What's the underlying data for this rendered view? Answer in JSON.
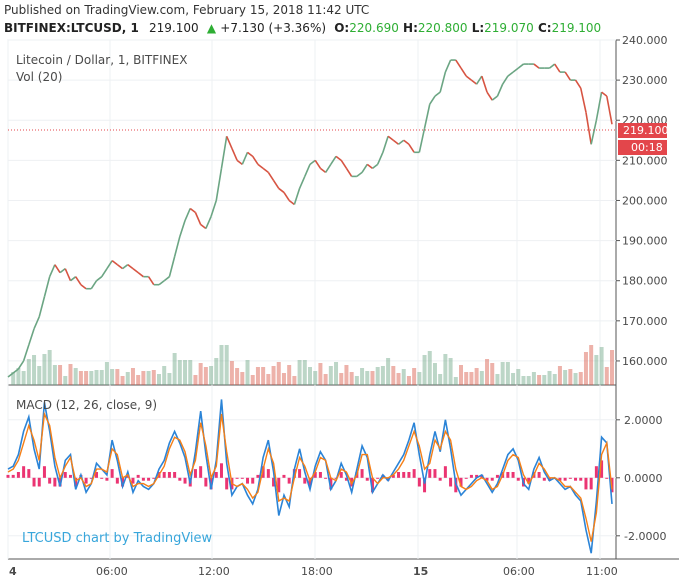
{
  "published": "Published on TradingView.com, February 15, 2018 11:42 UTC",
  "quote": {
    "symbol": "BITFINEX:LTCUSD, 1",
    "last": "219.100",
    "change": "+7.130 (+3.36%)",
    "o_label": "O:",
    "o": "220.690",
    "h_label": "H:",
    "h": "220.800",
    "l_label": "L:",
    "l": "219.070",
    "c_label": "C:",
    "c": "219.100"
  },
  "price_pane": {
    "title": "Litecoin / Dollar, 1, BITFINEX",
    "volume_label": "Vol (20)",
    "price_tag": "219.100",
    "countdown_tag": "00:18"
  },
  "macd_pane": {
    "label": "MACD (12, 26, close, 9)"
  },
  "watermark": "LTCUSD chart by TradingView",
  "colors": {
    "up": "#6ba583",
    "down": "#d75442",
    "macd_line": "#2b84d7",
    "signal_line": "#f57f17",
    "histogram": "#e91e63",
    "last_price": "#e3464b",
    "watermark": "#38a6db"
  },
  "chart_data": [
    {
      "type": "line",
      "title": "Litecoin / Dollar, 1, BITFINEX",
      "x_ticks": [
        "4",
        "06:00",
        "12:00",
        "18:00",
        "15",
        "06:00",
        "11:00"
      ],
      "y_ticks": [
        "240.000",
        "230.000",
        "220.000",
        "210.000",
        "200.000",
        "190.000",
        "180.000",
        "170.000",
        "160.000"
      ],
      "ylim": [
        154,
        240
      ],
      "last_price": 219.1,
      "series": [
        {
          "values": [
            156,
            157,
            158,
            160,
            164,
            168,
            171,
            176,
            181,
            184,
            182,
            183,
            180,
            181,
            179,
            178,
            178,
            180,
            181,
            183,
            185,
            184,
            183,
            184,
            183,
            182,
            181,
            181,
            179,
            179,
            180,
            181,
            186,
            191,
            195,
            198,
            197,
            194,
            193,
            196,
            200,
            208,
            216,
            213,
            210,
            209,
            212,
            211,
            209,
            208,
            207,
            205,
            203,
            202,
            200,
            199,
            203,
            206,
            209,
            210,
            208,
            207,
            209,
            211,
            210,
            208,
            206,
            206,
            207,
            209,
            208,
            209,
            212,
            216,
            215,
            214,
            215,
            214,
            212,
            212,
            218,
            224,
            226,
            227,
            232,
            235,
            235,
            233,
            231,
            230,
            229,
            231,
            227,
            225,
            226,
            229,
            231,
            232,
            233,
            234,
            234,
            234,
            233,
            233,
            233,
            234,
            232,
            232,
            230,
            230,
            228,
            222,
            214,
            220,
            227,
            226,
            219
          ]
        }
      ]
    },
    {
      "type": "line",
      "title": "MACD (12, 26, close, 9)",
      "y_ticks": [
        "2.0000",
        "0.0000",
        "-2.0000"
      ],
      "ylim": [
        -2.8,
        3.2
      ],
      "series": [
        {
          "name": "MACD",
          "values": [
            0.3,
            0.4,
            0.8,
            1.6,
            2.1,
            1.0,
            0.3,
            2.6,
            1.6,
            0.4,
            -0.3,
            0.6,
            0.8,
            -0.4,
            0.1,
            -0.5,
            -0.2,
            0.5,
            0.3,
            0.1,
            1.3,
            0.6,
            -0.3,
            0.2,
            -0.5,
            -0.1,
            -0.3,
            -0.4,
            -0.2,
            0.3,
            0.6,
            1.2,
            1.6,
            1.2,
            0.7,
            -0.2,
            0.9,
            2.3,
            0.8,
            -0.4,
            0.6,
            2.7,
            0.5,
            -0.6,
            -0.3,
            -0.2,
            -0.6,
            -0.9,
            -0.4,
            0.7,
            1.3,
            0.2,
            -1.3,
            -0.6,
            -1.0,
            0.3,
            1.0,
            0.2,
            -0.4,
            0.4,
            0.9,
            0.6,
            -0.4,
            -0.1,
            0.5,
            0.1,
            -0.5,
            0.3,
            1.1,
            0.7,
            -0.5,
            -0.2,
            0.1,
            -0.1,
            0.2,
            0.5,
            0.8,
            1.3,
            1.9,
            0.8,
            -0.2,
            0.8,
            1.6,
            0.9,
            2.0,
            1.0,
            -0.2,
            -0.6,
            -0.4,
            -0.2,
            0.0,
            0.1,
            -0.2,
            -0.5,
            -0.2,
            0.3,
            0.8,
            1.0,
            0.6,
            -0.2,
            -0.4,
            0.3,
            0.7,
            0.2,
            -0.1,
            0.0,
            -0.2,
            -0.4,
            -0.3,
            -0.6,
            -0.8,
            -1.8,
            -2.6,
            -0.8,
            1.4,
            1.2,
            -0.9
          ]
        },
        {
          "name": "Signal",
          "values": [
            0.2,
            0.3,
            0.6,
            1.2,
            1.8,
            1.3,
            0.6,
            2.2,
            1.8,
            0.7,
            0.0,
            0.4,
            0.7,
            -0.1,
            0.0,
            -0.3,
            -0.2,
            0.3,
            0.3,
            0.2,
            1.0,
            0.8,
            0.0,
            0.1,
            -0.3,
            -0.2,
            -0.2,
            -0.3,
            -0.2,
            0.1,
            0.4,
            1.0,
            1.4,
            1.3,
            0.9,
            0.1,
            0.6,
            1.9,
            1.1,
            0.0,
            0.4,
            2.2,
            0.9,
            -0.2,
            -0.3,
            -0.2,
            -0.4,
            -0.7,
            -0.5,
            0.3,
            1.0,
            0.5,
            -0.8,
            -0.7,
            -0.8,
            0.0,
            0.7,
            0.4,
            -0.1,
            0.2,
            0.7,
            0.6,
            0.0,
            -0.1,
            0.3,
            0.2,
            -0.2,
            0.1,
            0.8,
            0.8,
            0.0,
            -0.2,
            0.0,
            0.0,
            0.1,
            0.3,
            0.6,
            1.1,
            1.6,
            1.1,
            0.3,
            0.5,
            1.3,
            1.0,
            1.6,
            1.3,
            0.3,
            -0.3,
            -0.4,
            -0.3,
            -0.1,
            0.0,
            -0.1,
            -0.4,
            -0.3,
            0.1,
            0.6,
            0.8,
            0.7,
            0.1,
            -0.2,
            0.1,
            0.5,
            0.3,
            0.0,
            0.0,
            -0.1,
            -0.3,
            -0.3,
            -0.5,
            -0.7,
            -1.4,
            -2.2,
            -1.2,
            0.8,
            1.2,
            -0.4
          ]
        }
      ]
    }
  ]
}
